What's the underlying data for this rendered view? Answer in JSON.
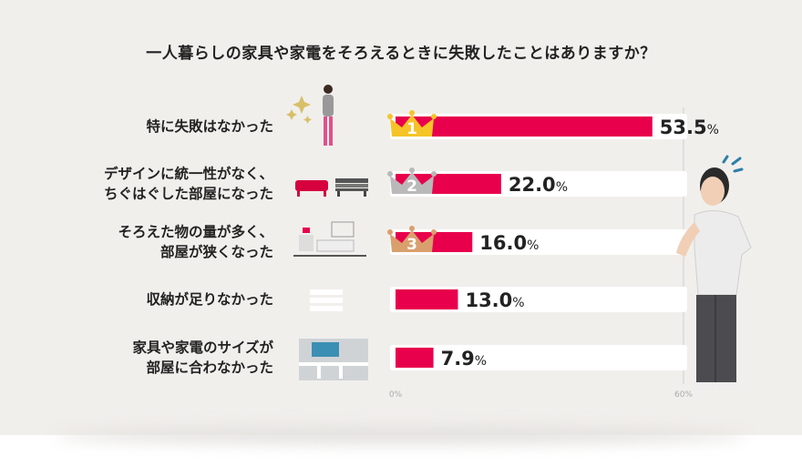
{
  "chart_data": {
    "type": "bar",
    "title": "一人暮らしの家具や家電をそろえるときに失敗したことはありますか？",
    "categories": [
      [
        "特に失敗はなかった"
      ],
      [
        "デザインに統一性がなく、",
        "ちぐはぐした部屋になった"
      ],
      [
        "そろえた物の量が多く、",
        "部屋が狭くなった"
      ],
      [
        "収納が足りなかった"
      ],
      [
        "家具や家電のサイズが",
        "部屋に合わなかった"
      ]
    ],
    "values": [
      53.5,
      22.0,
      16.0,
      13.0,
      7.9
    ],
    "value_unit": "%",
    "ranks": [
      "1",
      "2",
      "3"
    ],
    "rank_colors": [
      "#f6c428",
      "#b9b9b9",
      "#d9a06d"
    ],
    "xlim": [
      0,
      60
    ],
    "axis_labels": [
      "0%",
      "60%"
    ],
    "bar_color": "#e8004c",
    "track_color": "#ffffff",
    "orientation": "horizontal"
  }
}
